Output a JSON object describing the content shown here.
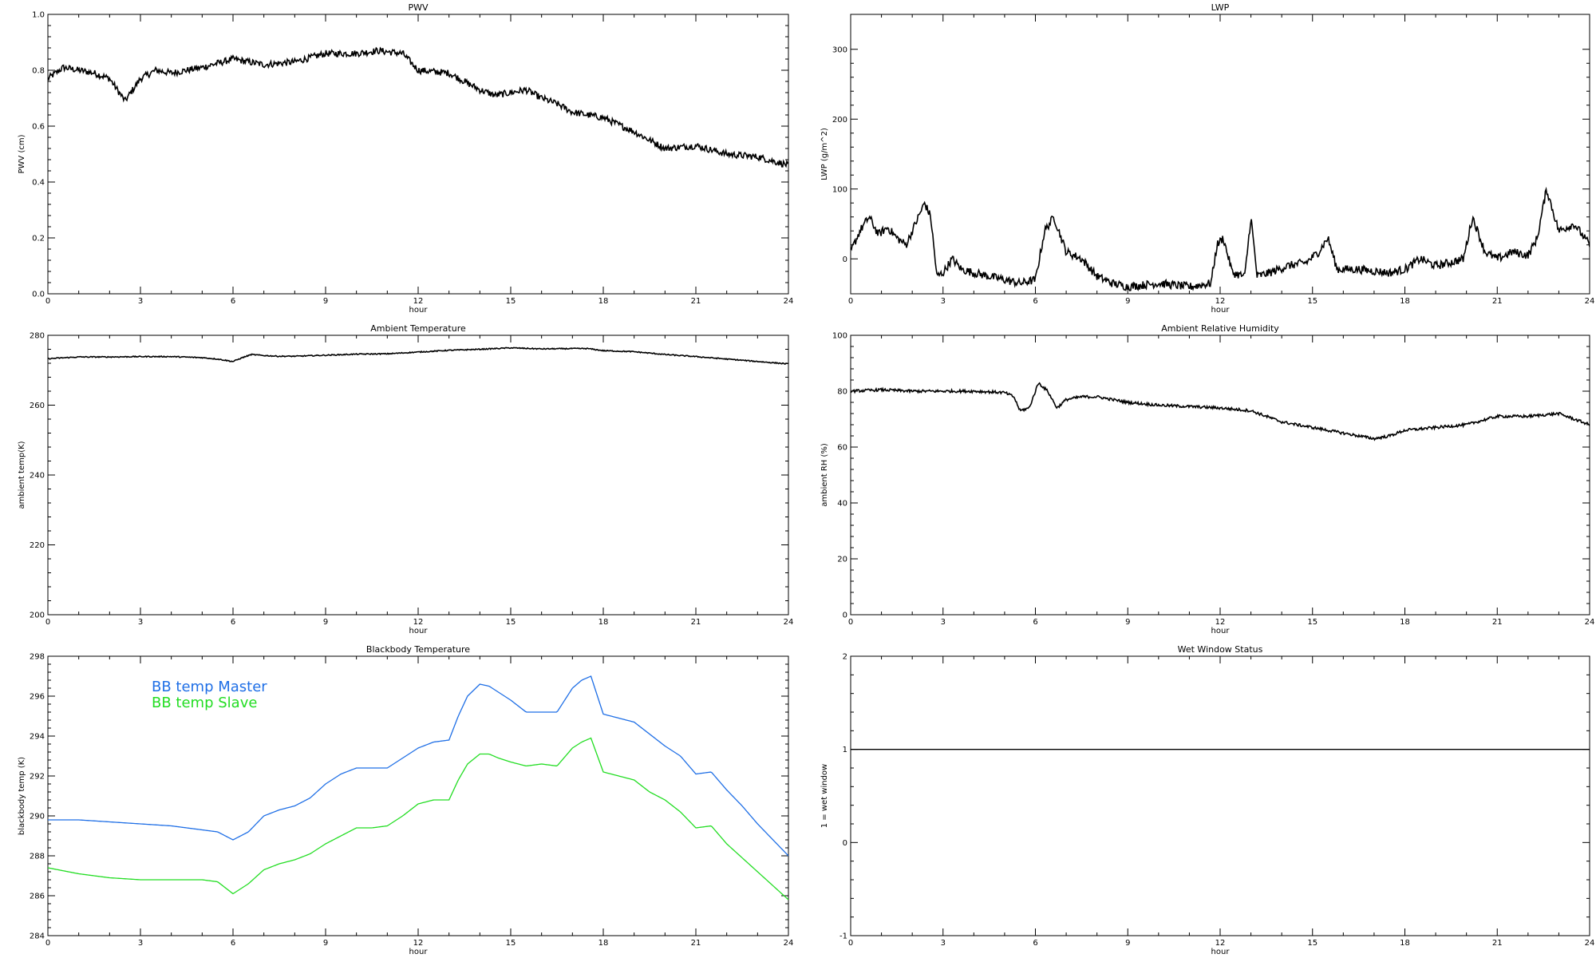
{
  "chart_data": [
    {
      "id": "pwv",
      "type": "line",
      "title": "PWV",
      "xlabel": "hour",
      "ylabel": "PWV (cm)",
      "xlim": [
        0,
        24
      ],
      "ylim": [
        0.0,
        1.0
      ],
      "xticks": [
        0,
        3,
        6,
        9,
        12,
        15,
        18,
        21,
        24
      ],
      "yticks": [
        "0.0",
        "0.2",
        "0.4",
        "0.6",
        "0.8",
        "1.0"
      ],
      "grid": false,
      "series": [
        {
          "color": "#000000",
          "noise": 0.012,
          "x": [
            0,
            0.5,
            1,
            1.5,
            2,
            2.5,
            3,
            3.5,
            4,
            5,
            6,
            7,
            8,
            9,
            10,
            10.7,
            11.5,
            12,
            13,
            14,
            14.5,
            15,
            15.5,
            16,
            16.5,
            17,
            18,
            19,
            20,
            21,
            22,
            23,
            24
          ],
          "y": [
            0.77,
            0.81,
            0.8,
            0.79,
            0.77,
            0.69,
            0.77,
            0.8,
            0.79,
            0.81,
            0.84,
            0.82,
            0.83,
            0.86,
            0.86,
            0.87,
            0.86,
            0.8,
            0.79,
            0.73,
            0.71,
            0.72,
            0.73,
            0.7,
            0.68,
            0.65,
            0.63,
            0.58,
            0.52,
            0.53,
            0.5,
            0.49,
            0.46
          ]
        }
      ]
    },
    {
      "id": "lwp",
      "type": "line",
      "title": "LWP",
      "xlabel": "hour",
      "ylabel": "LWP (g/m^2)",
      "xlim": [
        0,
        24
      ],
      "ylim": [
        -50,
        350
      ],
      "xticks": [
        0,
        3,
        6,
        9,
        12,
        15,
        18,
        21,
        24
      ],
      "yticks": [
        "0",
        "100",
        "200",
        "300"
      ],
      "grid": false,
      "series": [
        {
          "color": "#000000",
          "noise": 6,
          "x": [
            0,
            0.3,
            0.6,
            0.9,
            1.2,
            1.5,
            1.8,
            2.1,
            2.4,
            2.6,
            2.8,
            3,
            3.3,
            3.6,
            4,
            4.5,
            5,
            5.5,
            6,
            6.3,
            6.6,
            7,
            7.5,
            8,
            8.5,
            9,
            10,
            11,
            11.7,
            11.9,
            12.1,
            12.4,
            12.8,
            13,
            13.2,
            13.6,
            14.2,
            14.8,
            15.2,
            15.5,
            15.8,
            16.5,
            17.5,
            18,
            18.5,
            19,
            19.5,
            19.9,
            20.2,
            20.6,
            21,
            21.5,
            22,
            22.3,
            22.6,
            23,
            23.5,
            24
          ],
          "y": [
            10,
            40,
            60,
            35,
            45,
            30,
            20,
            50,
            80,
            60,
            -25,
            -20,
            0,
            -15,
            -20,
            -25,
            -30,
            -35,
            -30,
            40,
            60,
            10,
            0,
            -25,
            -35,
            -40,
            -35,
            -40,
            -35,
            20,
            30,
            -20,
            -25,
            60,
            -25,
            -20,
            -10,
            -5,
            10,
            30,
            -15,
            -15,
            -20,
            -15,
            0,
            -10,
            -5,
            0,
            60,
            10,
            0,
            10,
            5,
            30,
            100,
            40,
            50,
            20
          ]
        }
      ]
    },
    {
      "id": "ambient_temp",
      "type": "line",
      "title": "Ambient Temperature",
      "xlabel": "hour",
      "ylabel": "ambient temp(K)",
      "xlim": [
        0,
        24
      ],
      "ylim": [
        200,
        280
      ],
      "xticks": [
        0,
        3,
        6,
        9,
        12,
        15,
        18,
        21,
        24
      ],
      "yticks": [
        "200",
        "220",
        "240",
        "260",
        "280"
      ],
      "grid": false,
      "series": [
        {
          "color": "#000000",
          "noise": 0.15,
          "x": [
            0,
            1,
            2,
            3,
            4,
            5,
            5.5,
            6,
            6.3,
            6.6,
            7,
            7.5,
            8,
            9,
            10,
            11,
            12,
            13,
            14,
            15,
            16,
            17,
            17.5,
            18,
            19,
            20,
            21,
            22,
            23,
            24
          ],
          "y": [
            273.3,
            273.8,
            273.8,
            273.9,
            273.9,
            273.6,
            273.2,
            272.5,
            273.6,
            274.5,
            274.2,
            274.0,
            274.0,
            274.3,
            274.6,
            274.7,
            275.2,
            275.7,
            276.0,
            276.4,
            276.1,
            276.2,
            276.2,
            275.6,
            275.3,
            274.5,
            273.9,
            273.2,
            272.5,
            271.8
          ]
        }
      ]
    },
    {
      "id": "ambient_rh",
      "type": "line",
      "title": "Ambient Relative Humidity",
      "xlabel": "hour",
      "ylabel": "ambient RH (%)",
      "xlim": [
        0,
        24
      ],
      "ylim": [
        0,
        100
      ],
      "xticks": [
        0,
        3,
        6,
        9,
        12,
        15,
        18,
        21,
        24
      ],
      "yticks": [
        "0",
        "20",
        "40",
        "60",
        "80",
        "100"
      ],
      "grid": false,
      "series": [
        {
          "color": "#000000",
          "noise": 0.5,
          "x": [
            0,
            1,
            2,
            3,
            4,
            5,
            5.3,
            5.5,
            5.8,
            6.1,
            6.4,
            6.7,
            7,
            7.5,
            8,
            9,
            10,
            11,
            12,
            13,
            14,
            15,
            15.5,
            16,
            17,
            17.5,
            18,
            19,
            20,
            21,
            22,
            23,
            24
          ],
          "y": [
            80,
            80.5,
            80,
            80,
            80,
            79.5,
            78,
            73,
            74,
            83,
            80,
            74,
            77,
            78,
            78,
            76,
            75,
            74.5,
            74,
            73,
            69,
            67,
            66,
            65,
            63,
            64,
            66,
            67,
            68,
            71,
            71,
            72,
            68
          ]
        }
      ]
    },
    {
      "id": "blackbody",
      "type": "line",
      "title": "Blackbody Temperature",
      "xlabel": "hour",
      "ylabel": "blackbody temp (K)",
      "xlim": [
        0,
        24
      ],
      "ylim": [
        284,
        298
      ],
      "xticks": [
        0,
        3,
        6,
        9,
        12,
        15,
        18,
        21,
        24
      ],
      "yticks": [
        "284",
        "286",
        "288",
        "290",
        "292",
        "294",
        "296",
        "298"
      ],
      "grid": false,
      "series": [
        {
          "name": "BB temp Master",
          "color": "#1f6fe6",
          "noise": 0,
          "x": [
            0,
            1,
            2,
            3,
            4,
            5,
            5.5,
            6,
            6.5,
            7,
            7.5,
            8,
            8.5,
            9,
            9.5,
            10,
            10.5,
            11,
            11.5,
            12,
            12.5,
            13,
            13.3,
            13.6,
            14,
            14.3,
            14.6,
            15,
            15.5,
            16,
            16.5,
            17,
            17.3,
            17.6,
            18,
            18.5,
            19,
            19.5,
            20,
            20.5,
            21,
            21.5,
            22,
            22.5,
            23,
            23.5,
            24
          ],
          "y": [
            289.8,
            289.8,
            289.7,
            289.6,
            289.5,
            289.3,
            289.2,
            288.8,
            289.2,
            290.0,
            290.3,
            290.5,
            290.9,
            291.6,
            292.1,
            292.4,
            292.4,
            292.4,
            292.9,
            293.4,
            293.7,
            293.8,
            295.0,
            296.0,
            296.6,
            296.5,
            296.2,
            295.8,
            295.2,
            295.2,
            295.2,
            296.4,
            296.8,
            297.0,
            295.1,
            294.9,
            294.7,
            294.1,
            293.5,
            293.0,
            292.1,
            292.2,
            291.3,
            290.5,
            289.6,
            288.8,
            288.0
          ]
        },
        {
          "name": "BB temp Slave",
          "color": "#22dd22",
          "noise": 0,
          "x": [
            0,
            1,
            2,
            3,
            4,
            5,
            5.5,
            6,
            6.5,
            7,
            7.5,
            8,
            8.5,
            9,
            9.5,
            10,
            10.5,
            11,
            11.5,
            12,
            12.5,
            13,
            13.3,
            13.6,
            14,
            14.3,
            14.6,
            15,
            15.5,
            16,
            16.5,
            17,
            17.3,
            17.6,
            18,
            18.5,
            19,
            19.5,
            20,
            20.5,
            21,
            21.5,
            22,
            22.5,
            23,
            23.5,
            24
          ],
          "y": [
            287.4,
            287.1,
            286.9,
            286.8,
            286.8,
            286.8,
            286.7,
            286.1,
            286.6,
            287.3,
            287.6,
            287.8,
            288.1,
            288.6,
            289.0,
            289.4,
            289.4,
            289.5,
            290.0,
            290.6,
            290.8,
            290.8,
            291.8,
            292.6,
            293.1,
            293.1,
            292.9,
            292.7,
            292.5,
            292.6,
            292.5,
            293.4,
            293.7,
            293.9,
            292.2,
            292.0,
            291.8,
            291.2,
            290.8,
            290.2,
            289.4,
            289.5,
            288.6,
            287.9,
            287.2,
            286.5,
            285.8
          ]
        }
      ],
      "legend": {
        "position": "top-left",
        "entries": [
          "BB temp Master",
          "BB temp Slave"
        ]
      }
    },
    {
      "id": "wet_window",
      "type": "line",
      "title": "Wet Window Status",
      "xlabel": "hour",
      "ylabel": "1 = wet window",
      "xlim": [
        0,
        24
      ],
      "ylim": [
        -1,
        2
      ],
      "xticks": [
        0,
        3,
        6,
        9,
        12,
        15,
        18,
        21,
        24
      ],
      "yticks": [
        "-1",
        "0",
        "1",
        "2"
      ],
      "grid": false,
      "series": [
        {
          "color": "#000000",
          "noise": 0,
          "x": [
            0,
            24
          ],
          "y": [
            1,
            1
          ]
        }
      ]
    }
  ]
}
